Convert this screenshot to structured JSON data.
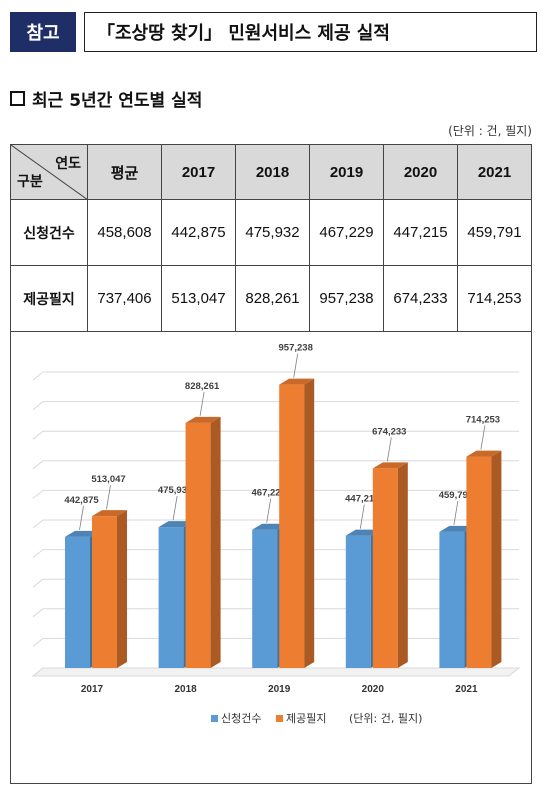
{
  "header": {
    "badge": "참고",
    "title": "「조상땅 찾기」 민원서비스 제공 실적"
  },
  "section": {
    "title": "최근 5년간 연도별 실적"
  },
  "unit_note": "(단위 : 건, 필지)",
  "table": {
    "corner_top": "연도",
    "corner_bottom": "구분",
    "columns": [
      "평균",
      "2017",
      "2018",
      "2019",
      "2020",
      "2021"
    ],
    "rows": [
      {
        "label": "신청건수",
        "values": [
          "458,608",
          "442,875",
          "475,932",
          "467,229",
          "447,215",
          "459,791"
        ]
      },
      {
        "label": "제공필지",
        "values": [
          "737,406",
          "513,047",
          "828,261",
          "957,238",
          "674,233",
          "714,253"
        ]
      }
    ]
  },
  "chart_data": {
    "type": "bar",
    "categories": [
      "2017",
      "2018",
      "2019",
      "2020",
      "2021"
    ],
    "series": [
      {
        "name": "신청건수",
        "values": [
          442875,
          475932,
          467229,
          447215,
          459791
        ],
        "labels": [
          "442,875",
          "475,932",
          "467,229",
          "447,215",
          "459,791"
        ],
        "color": "#5b9bd5"
      },
      {
        "name": "제공필지",
        "values": [
          513047,
          828261,
          957238,
          674233,
          714253
        ],
        "labels": [
          "513,047",
          "828,261",
          "957,238",
          "674,233",
          "714,253"
        ],
        "color": "#ed7d31"
      }
    ],
    "ylim": [
      0,
      1000000
    ],
    "grid": true,
    "legend_position": "bottom",
    "legend_note": "(단위: 건, 필지)"
  }
}
